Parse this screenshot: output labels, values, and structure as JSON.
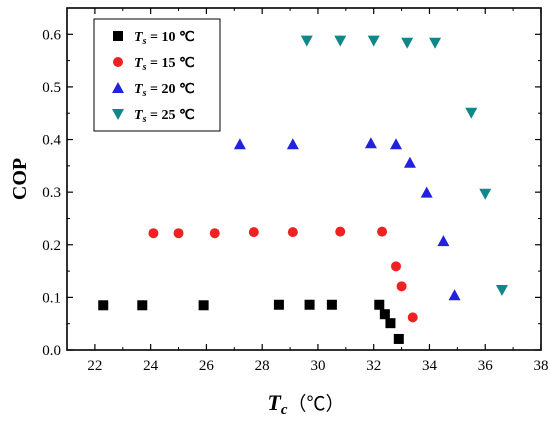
{
  "chart_data": {
    "type": "scatter",
    "xlabel": {
      "main": "T",
      "sub": "c",
      "unit": "（℃）"
    },
    "ylabel": "COP",
    "xlim": [
      21,
      38
    ],
    "ylim": [
      0.0,
      0.65
    ],
    "xticks": [
      22,
      24,
      26,
      28,
      30,
      32,
      34,
      36,
      38
    ],
    "yticks": [
      0.0,
      0.1,
      0.2,
      0.3,
      0.4,
      0.5,
      0.6
    ],
    "ytick_labels": [
      "0.0",
      "0.1",
      "0.2",
      "0.3",
      "0.4",
      "0.5",
      "0.6"
    ],
    "grid": false,
    "legend_position": "top-left",
    "series": [
      {
        "name": "Ts = 10 ℃",
        "label_main": "T",
        "label_sub": "s",
        "label_rest": " = 10 ℃",
        "marker": "square",
        "color": "#000000",
        "points": [
          [
            22.3,
            0.085
          ],
          [
            23.7,
            0.085
          ],
          [
            25.9,
            0.085
          ],
          [
            28.6,
            0.086
          ],
          [
            29.7,
            0.086
          ],
          [
            30.5,
            0.086
          ],
          [
            32.2,
            0.086
          ],
          [
            32.4,
            0.068
          ],
          [
            32.6,
            0.051
          ],
          [
            32.9,
            0.021
          ]
        ]
      },
      {
        "name": "Ts = 15 ℃",
        "label_main": "T",
        "label_sub": "s",
        "label_rest": " = 15 ℃",
        "marker": "circle",
        "color": "#ee2222",
        "points": [
          [
            24.1,
            0.222
          ],
          [
            25.0,
            0.222
          ],
          [
            26.3,
            0.222
          ],
          [
            27.7,
            0.224
          ],
          [
            29.1,
            0.224
          ],
          [
            30.8,
            0.225
          ],
          [
            32.3,
            0.225
          ],
          [
            32.8,
            0.159
          ],
          [
            33.0,
            0.121
          ],
          [
            33.4,
            0.062
          ]
        ]
      },
      {
        "name": "Ts = 20 ℃",
        "label_main": "T",
        "label_sub": "s",
        "label_rest": " = 20 ℃",
        "marker": "triangle-up",
        "color": "#2222dd",
        "points": [
          [
            27.2,
            0.391
          ],
          [
            29.1,
            0.391
          ],
          [
            31.9,
            0.393
          ],
          [
            32.8,
            0.391
          ],
          [
            33.3,
            0.356
          ],
          [
            33.9,
            0.299
          ],
          [
            34.5,
            0.207
          ],
          [
            34.9,
            0.104
          ]
        ]
      },
      {
        "name": "Ts = 25 ℃",
        "label_main": "T",
        "label_sub": "s",
        "label_rest": " = 25 ℃",
        "marker": "triangle-down",
        "color": "#118888",
        "points": [
          [
            29.6,
            0.588
          ],
          [
            30.8,
            0.588
          ],
          [
            32.0,
            0.588
          ],
          [
            33.2,
            0.584
          ],
          [
            34.2,
            0.584
          ],
          [
            35.5,
            0.451
          ],
          [
            36.0,
            0.297
          ],
          [
            36.6,
            0.114
          ]
        ]
      }
    ]
  }
}
